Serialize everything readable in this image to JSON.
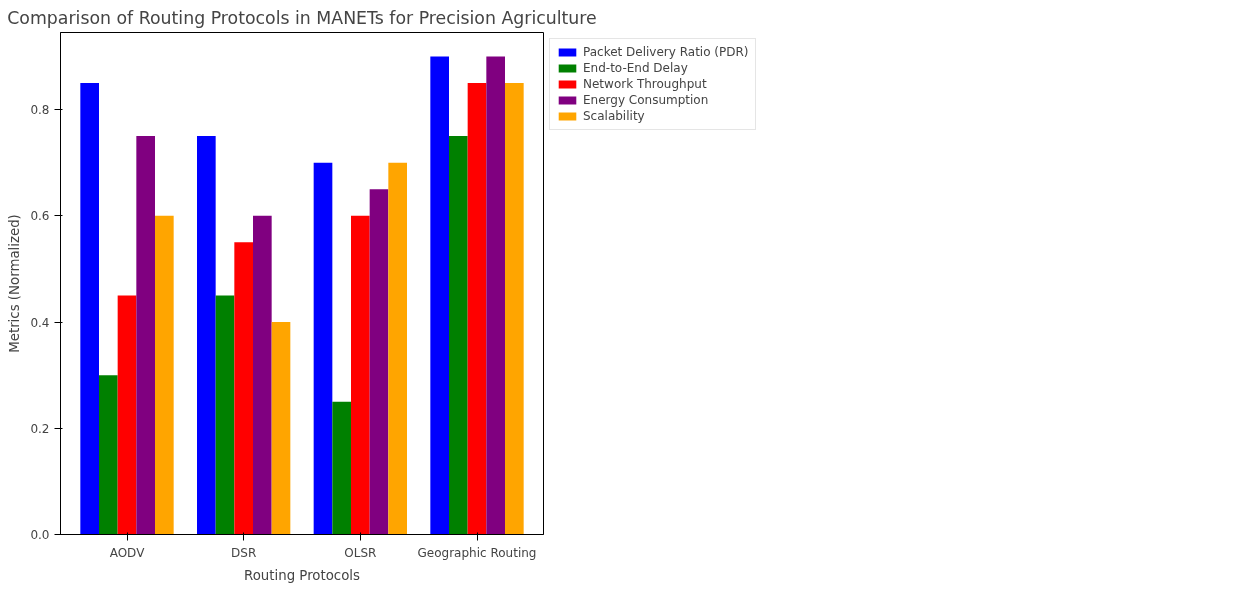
{
  "chart_data": {
    "type": "bar",
    "title": "Comparison of Routing Protocols in MANETs for Precision Agriculture",
    "xlabel": "Routing Protocols",
    "ylabel": "Metrics (Normalized)",
    "categories": [
      "AODV",
      "DSR",
      "OLSR",
      "Geographic Routing"
    ],
    "series": [
      {
        "name": "Packet Delivery Ratio (PDR)",
        "color": "#0000ff",
        "values": [
          0.85,
          0.75,
          0.7,
          0.9
        ]
      },
      {
        "name": "End-to-End Delay",
        "color": "#008000",
        "values": [
          0.3,
          0.45,
          0.25,
          0.75
        ]
      },
      {
        "name": "Network Throughput",
        "color": "#ff0000",
        "values": [
          0.45,
          0.55,
          0.6,
          0.85
        ]
      },
      {
        "name": "Energy Consumption",
        "color": "#800080",
        "values": [
          0.75,
          0.6,
          0.65,
          0.9
        ]
      },
      {
        "name": "Scalability",
        "color": "#ffa500",
        "values": [
          0.6,
          0.4,
          0.7,
          0.85
        ]
      }
    ],
    "ylim": [
      0,
      0.945
    ],
    "yticks": [
      {
        "value": 0,
        "label": "0.0"
      },
      {
        "value": 0.2,
        "label": "0.2"
      },
      {
        "value": 0.4,
        "label": "0.4"
      },
      {
        "value": 0.6,
        "label": "0.6"
      },
      {
        "value": 0.8,
        "label": "0.8"
      }
    ],
    "grid": false,
    "legend": "top right"
  }
}
